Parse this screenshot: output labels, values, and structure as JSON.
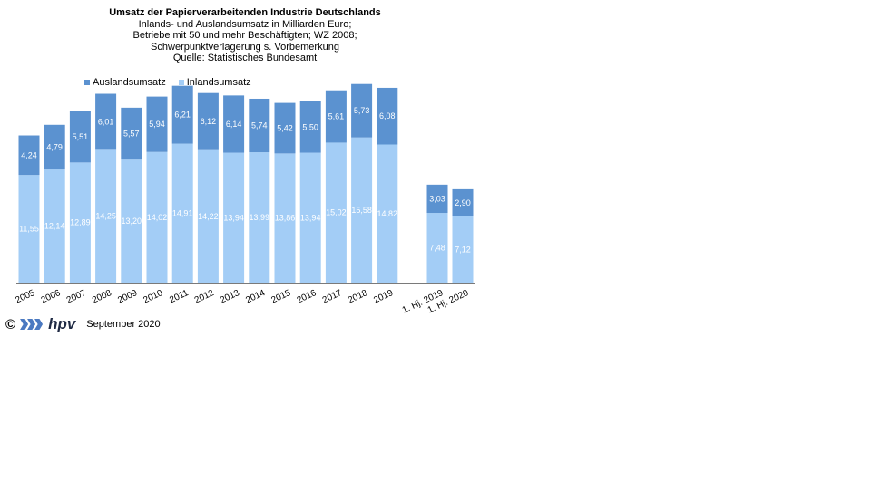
{
  "title": "Umsatz der Papierverarbeitenden Industrie Deutschlands",
  "subtitle_lines": [
    "Inlands- und Auslandsumsatz in Milliarden Euro;",
    "Betriebe mit 50 und mehr Beschäftigten; WZ 2008;",
    "Schwerpunktverlagerung s. Vorbemerkung",
    "Quelle: Statistisches Bundesamt"
  ],
  "footer": {
    "copyright": "©",
    "brand": "hpv",
    "date": "September 2020"
  },
  "colors": {
    "auslandsumsatz": "#5b92d0",
    "inlandsumsatz": "#a3cdf6",
    "label_text": "#ffffff",
    "brand_chevron": "#4b79c1"
  },
  "chart_data": {
    "type": "bar",
    "stacked": true,
    "categories": [
      "2005",
      "2006",
      "2007",
      "2008",
      "2009",
      "2010",
      "2011",
      "2012",
      "2013",
      "2014",
      "2015",
      "2016",
      "2017",
      "2018",
      "2019",
      "1. Hj. 2019",
      "1. Hj. 2020"
    ],
    "series": [
      {
        "name": "Inlandsumsatz",
        "values": [
          11.55,
          12.14,
          12.89,
          14.25,
          13.2,
          14.02,
          14.91,
          14.22,
          13.94,
          13.99,
          13.86,
          13.94,
          15.02,
          15.58,
          14.82,
          7.48,
          7.12
        ],
        "labels": [
          "11,55",
          "12,14",
          "12,89",
          "14,25",
          "13,20",
          "14,02",
          "14,91",
          "14,22",
          "13,94",
          "13,99",
          "13,86",
          "13,94",
          "15,02",
          "15,58",
          "14,82",
          "7,48",
          "7,12"
        ]
      },
      {
        "name": "Auslandsumsatz",
        "values": [
          4.24,
          4.79,
          5.51,
          6.01,
          5.57,
          5.94,
          6.21,
          6.12,
          6.14,
          5.74,
          5.42,
          5.5,
          5.61,
          5.73,
          6.08,
          3.03,
          2.9
        ],
        "labels": [
          "4,24",
          "4,79",
          "5,51",
          "6,01",
          "5,57",
          "5,94",
          "6,21",
          "6,12",
          "6,14",
          "5,74",
          "5,42",
          "5,50",
          "5,61",
          "5,73",
          "6,08",
          "3,03",
          "2,90"
        ]
      }
    ],
    "legend_order": [
      "Auslandsumsatz",
      "Inlandsumsatz"
    ],
    "legend_position": "top-left",
    "grid": false,
    "ylim": [
      0,
      22
    ],
    "xlabel": "",
    "ylabel": ""
  }
}
